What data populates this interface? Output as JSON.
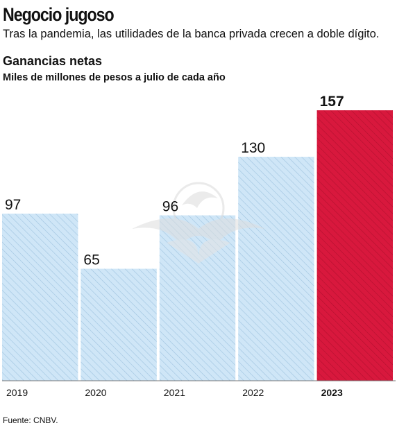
{
  "header": {
    "title": "Negocio jugoso",
    "subtitle": "Tras la pandemia, las utilidades de la banca privada crecen a doble dígito."
  },
  "source": "Fuente: CNBV.",
  "chart_data": {
    "type": "bar",
    "title": "Ganancias netas",
    "subtitle": "Miles de millones de pesos a julio de cada año",
    "categories": [
      "2019",
      "2020",
      "2021",
      "2022",
      "2023"
    ],
    "values": [
      97,
      65,
      96,
      130,
      157
    ],
    "data_labels": [
      "97",
      "65",
      "96",
      "130",
      "157"
    ],
    "ylim": [
      0,
      157
    ],
    "highlight_index": 4,
    "grid": false,
    "legend": "none",
    "colors": {
      "bar": "#cfe6f7",
      "bar_hatch": "#9ec3df",
      "highlight": "#d8183d",
      "highlight_hatch": "#b3102f",
      "axis": "#777777",
      "watermark": "#e3e3e3"
    }
  }
}
